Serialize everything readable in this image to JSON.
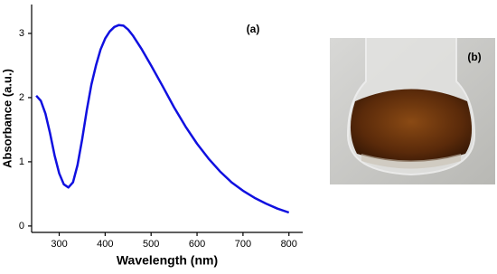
{
  "chart_data": {
    "type": "line",
    "xlabel": "Wavelength (nm)",
    "ylabel": "Absorbance (a.u.)",
    "annotation": "(a)",
    "x": [
      250,
      260,
      270,
      280,
      290,
      300,
      310,
      320,
      330,
      340,
      350,
      360,
      370,
      380,
      390,
      400,
      410,
      420,
      430,
      440,
      450,
      460,
      480,
      500,
      525,
      550,
      575,
      600,
      625,
      650,
      675,
      700,
      725,
      750,
      775,
      800
    ],
    "series": [
      {
        "color": "#1010e0",
        "values": [
          2.03,
          1.95,
          1.75,
          1.45,
          1.1,
          0.82,
          0.65,
          0.6,
          0.68,
          0.95,
          1.35,
          1.8,
          2.2,
          2.5,
          2.75,
          2.92,
          3.03,
          3.1,
          3.13,
          3.12,
          3.06,
          2.97,
          2.75,
          2.5,
          2.18,
          1.85,
          1.55,
          1.28,
          1.05,
          0.85,
          0.68,
          0.55,
          0.44,
          0.35,
          0.27,
          0.21
        ]
      }
    ],
    "xlim": [
      240,
      830
    ],
    "ylim": [
      -0.1,
      3.45
    ],
    "xticks": [
      300,
      400,
      500,
      600,
      700,
      800
    ],
    "yticks": [
      0,
      1,
      2,
      3
    ],
    "grid": false
  },
  "photo": {
    "label": "(b)"
  }
}
